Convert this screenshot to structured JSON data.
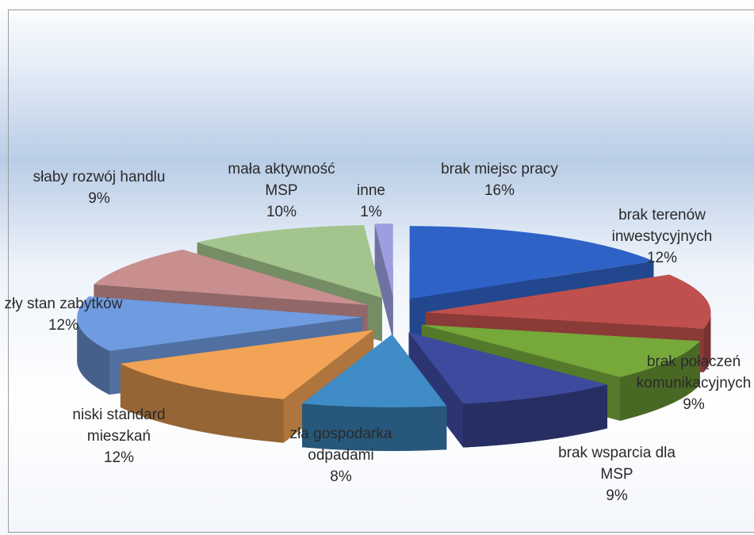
{
  "chart_data": {
    "type": "pie3d",
    "categories": [
      "brak miejsc pracy",
      "brak terenów inwestycyjnych",
      "brak połączeń komunikacyjnych",
      "brak wsparcia dla MSP",
      "zła gospodarka odpadami",
      "niski standard mieszkań",
      "zły stan zabytków",
      "słaby rozwój handlu",
      "mała aktywność MSP",
      "inne"
    ],
    "values": [
      16,
      12,
      9,
      9,
      8,
      12,
      12,
      9,
      10,
      1
    ],
    "value_labels": [
      "16%",
      "12%",
      "9%",
      "9%",
      "8%",
      "12%",
      "12%",
      "9%",
      "10%",
      "1%"
    ],
    "colors": [
      "#2f62c6",
      "#c0504d",
      "#76a83a",
      "#3d4a9e",
      "#3f8cc6",
      "#f2a356",
      "#6f9be0",
      "#c98f8f",
      "#a3c48c",
      "#9c9ee0"
    ]
  }
}
